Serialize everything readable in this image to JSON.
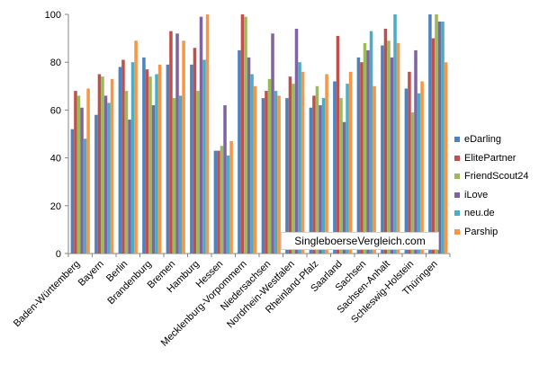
{
  "chart_data": {
    "type": "bar",
    "categories": [
      "Baden-Württemberg",
      "Bayern",
      "Berlin",
      "Brandenburg",
      "Bremen",
      "Hamburg",
      "Hessen",
      "Mecklenburg-Vorpommern",
      "Niedersachsen",
      "Nordrhein-Westfalen",
      "Rheinland-Pfalz",
      "Saarland",
      "Sachsen",
      "Sachsen-Anhalt",
      "Schleswig-Holstein",
      "Thüringen"
    ],
    "series": [
      {
        "name": "eDarling",
        "color": "#4f81bd",
        "values": [
          52,
          58,
          78,
          82,
          79,
          79,
          43,
          85,
          65,
          65,
          61,
          72,
          82,
          87,
          69,
          100
        ]
      },
      {
        "name": "ElitePartner",
        "color": "#c0504d",
        "values": [
          68,
          75,
          81,
          77,
          93,
          86,
          43,
          100,
          68,
          74,
          66,
          91,
          80,
          94,
          76,
          90
        ]
      },
      {
        "name": "FriendScout24",
        "color": "#9bbb59",
        "values": [
          66,
          74,
          68,
          74,
          65,
          68,
          45,
          99,
          73,
          71,
          70,
          65,
          88,
          89,
          59,
          100
        ]
      },
      {
        "name": "iLove",
        "color": "#8064a2",
        "values": [
          61,
          66,
          56,
          62,
          92,
          99,
          62,
          82,
          92,
          94,
          62,
          55,
          85,
          82,
          85,
          97
        ]
      },
      {
        "name": "neu.de",
        "color": "#4bacc6",
        "values": [
          48,
          63,
          80,
          75,
          66,
          81,
          41,
          75,
          68,
          80,
          65,
          71,
          93,
          100,
          67,
          97
        ]
      },
      {
        "name": "Parship",
        "color": "#f79646",
        "values": [
          69,
          73,
          89,
          79,
          89,
          100,
          47,
          70,
          66,
          76,
          75,
          76,
          70,
          88,
          72,
          80
        ]
      }
    ],
    "ylim": [
      0,
      100
    ],
    "yticks": [
      0,
      20,
      40,
      60,
      80,
      100
    ],
    "grid": false,
    "legend_position": "right"
  },
  "watermark": "SingleboerseVergleich.com"
}
